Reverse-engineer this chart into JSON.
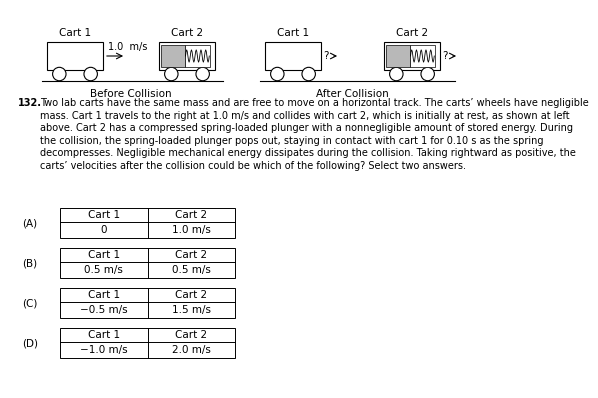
{
  "title_number": "132.",
  "question_lines": [
    "132.  Two lab carts have the same mass and are free to move on a horizontal track. The carts’ wheels have negligible",
    "mass. Cart 1 travels to the right at 1.0 m/s and collides with cart 2, which is initially at rest, as shown at left",
    "above. Cart 2 has a compressed spring-loaded plunger with a nonnegligible amount of stored energy. During",
    "the collision, the spring-loaded plunger pops out, staying in contact with cart 1 for 0.10 s as the spring",
    "decompresses. Negligible mechanical energy dissipates during the collision. Taking rightward as positive, the",
    "carts’ velocities after the collision could be which of the following? Select two answers."
  ],
  "before_label": "Before Collision",
  "after_label": "After Collision",
  "options": [
    {
      "letter": "(A)",
      "cart1": "0",
      "cart2": "1.0 m/s"
    },
    {
      "letter": "(B)",
      "cart1": "0.5 m/s",
      "cart2": "0.5 m/s"
    },
    {
      "letter": "(C)",
      "cart1": "−0.5 m/s",
      "cart2": "1.5 m/s"
    },
    {
      "letter": "(D)",
      "cart1": "−1.0 m/s",
      "cart2": "2.0 m/s"
    }
  ],
  "bg_color": "#ffffff",
  "text_color": "#000000"
}
